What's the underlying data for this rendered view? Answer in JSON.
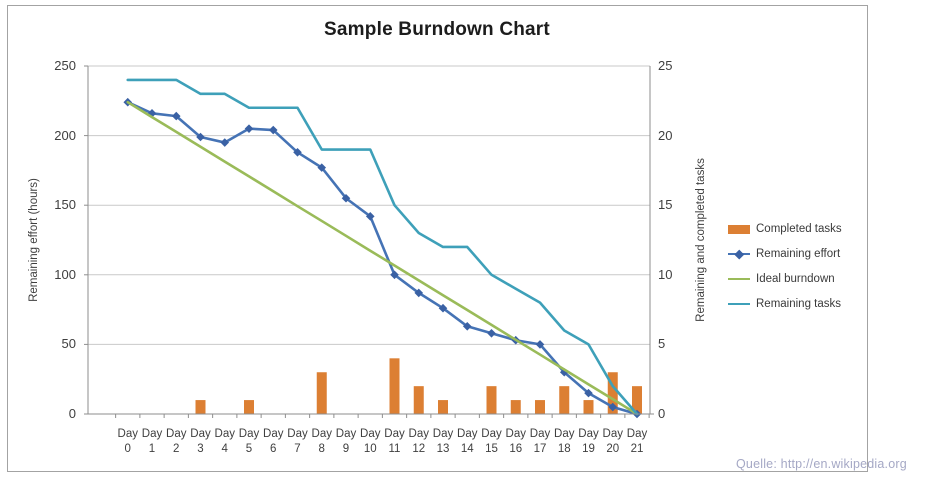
{
  "title": "Sample Burndown Chart",
  "footer_text": "Quelle: http://en.wikipedia.org",
  "colors": {
    "bar_orange": "#dc7f33",
    "effort_blue": "#4573b5",
    "effort_marker_blue": "#3a61a4",
    "ideal_green": "#9abb59",
    "tasks_teal": "#3ea0b9",
    "gridline": "#c9c9c9",
    "axis_line": "#8e8e8e",
    "tick_text": "#3f3f3f",
    "frame_border": "#a3a3a3",
    "caption_text": "#a5a8c5"
  },
  "chart_data": {
    "type": "combo-bar-line",
    "title": "Sample Burndown Chart",
    "categories": [
      "Day 0",
      "Day 1",
      "Day 2",
      "Day 3",
      "Day 4",
      "Day 5",
      "Day 6",
      "Day 7",
      "Day 8",
      "Day 9",
      "Day 10",
      "Day 11",
      "Day 12",
      "Day 13",
      "Day 14",
      "Day 15",
      "Day 16",
      "Day 17",
      "Day 18",
      "Day 19",
      "Day 20",
      "Day 21"
    ],
    "series": [
      {
        "name": "Completed tasks",
        "type": "bar",
        "axis": "right",
        "color": "#dc7f33",
        "values": [
          0,
          0,
          0,
          1,
          0,
          1,
          0,
          0,
          3,
          0,
          0,
          4,
          2,
          1,
          0,
          2,
          1,
          1,
          2,
          1,
          3,
          2
        ]
      },
      {
        "name": "Remaining effort",
        "type": "line",
        "marker": "diamond",
        "axis": "left",
        "color": "#4573b5",
        "marker_color": "#3a61a4",
        "values": [
          224,
          216,
          214,
          199,
          195,
          205,
          204,
          188,
          177,
          155,
          142,
          100,
          87,
          76,
          63,
          58,
          53,
          50,
          30,
          15,
          5,
          0
        ]
      },
      {
        "name": "Ideal burndown",
        "type": "line",
        "axis": "left",
        "color": "#9abb59",
        "values": [
          224,
          213.3,
          202.7,
          192,
          181.3,
          170.7,
          160,
          149.3,
          138.7,
          128,
          117.3,
          106.7,
          96,
          85.3,
          74.7,
          64,
          53.3,
          42.7,
          32,
          21.3,
          10.7,
          0
        ]
      },
      {
        "name": "Remaining tasks",
        "type": "line",
        "axis": "right",
        "color": "#3ea0b9",
        "values": [
          24,
          24,
          24,
          23,
          23,
          22,
          22,
          22,
          19,
          19,
          19,
          15,
          13,
          12,
          12,
          10,
          9,
          8,
          6,
          5,
          2,
          0
        ]
      }
    ],
    "axes": {
      "left": {
        "title": "Remaining effort (hours)",
        "min": 0,
        "max": 250,
        "ticks": [
          0,
          50,
          100,
          150,
          200,
          250
        ]
      },
      "right": {
        "title": "Remaining and completed tasks",
        "min": 0,
        "max": 25,
        "ticks": [
          0,
          5,
          10,
          15,
          20,
          25
        ]
      },
      "x": {
        "tick_word": "Day",
        "tick_numbers": [
          "0",
          "1",
          "2",
          "3",
          "4",
          "5",
          "6",
          "7",
          "8",
          "9",
          "10",
          "11",
          "12",
          "13",
          "14",
          "15",
          "16",
          "17",
          "18",
          "19",
          "20",
          "21"
        ]
      }
    },
    "grid": true,
    "legend_position": "right"
  }
}
